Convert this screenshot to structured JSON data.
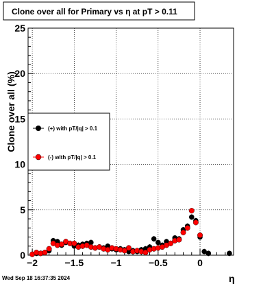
{
  "chart_data": {
    "type": "scatter",
    "title": "Clone  over all for Primary vs   η at pT > 0.11",
    "xlabel": "η",
    "ylabel": "Clone  over all (%)",
    "xlim": [
      -2.05,
      0.4
    ],
    "ylim": [
      0,
      25
    ],
    "grid": true,
    "legend_position": "left-middle",
    "x_ticks": [
      {
        "value": -2,
        "label": "−2"
      },
      {
        "value": -1.5,
        "label": "−1.5"
      },
      {
        "value": -1,
        "label": "−1"
      },
      {
        "value": -0.5,
        "label": "−0.5"
      },
      {
        "value": 0,
        "label": "0"
      }
    ],
    "y_ticks": [
      {
        "value": 0,
        "label": "0"
      },
      {
        "value": 5,
        "label": "5"
      },
      {
        "value": 10,
        "label": "10"
      },
      {
        "value": 15,
        "label": "15"
      },
      {
        "value": 20,
        "label": "20"
      },
      {
        "value": 25,
        "label": "25"
      }
    ],
    "series": [
      {
        "name": "(+) with pT/|q| > 0.1",
        "color": "#000000",
        "marker": "circle",
        "x": [
          -2.0,
          -1.95,
          -1.9,
          -1.85,
          -1.8,
          -1.75,
          -1.7,
          -1.65,
          -1.6,
          -1.55,
          -1.5,
          -1.45,
          -1.4,
          -1.35,
          -1.3,
          -1.25,
          -1.2,
          -1.15,
          -1.1,
          -1.05,
          -1.0,
          -0.95,
          -0.9,
          -0.85,
          -0.8,
          -0.75,
          -0.7,
          -0.65,
          -0.6,
          -0.55,
          -0.5,
          -0.45,
          -0.4,
          -0.35,
          -0.3,
          -0.25,
          -0.2,
          -0.15,
          -0.1,
          -0.05,
          0.0,
          0.05,
          0.1,
          0.35
        ],
        "y": [
          0.1,
          0.2,
          0.2,
          0.3,
          0.5,
          1.6,
          1.5,
          1.1,
          1.4,
          1.3,
          1.0,
          1.1,
          1.2,
          1.3,
          1.4,
          0.8,
          0.9,
          0.8,
          1.0,
          0.7,
          0.6,
          0.7,
          0.6,
          0.4,
          0.5,
          0.4,
          0.6,
          0.7,
          0.9,
          1.8,
          1.4,
          1.1,
          1.5,
          1.3,
          1.9,
          1.8,
          2.8,
          3.2,
          4.2,
          3.8,
          2.0,
          0.4,
          0.2,
          0.2
        ]
      },
      {
        "name": "(-) with pT/|q| > 0.1",
        "color": "#ff0000",
        "marker": "circle",
        "x": [
          -2.0,
          -1.95,
          -1.9,
          -1.85,
          -1.8,
          -1.75,
          -1.7,
          -1.65,
          -1.6,
          -1.55,
          -1.5,
          -1.45,
          -1.4,
          -1.35,
          -1.3,
          -1.25,
          -1.2,
          -1.15,
          -1.1,
          -1.05,
          -1.0,
          -0.95,
          -0.9,
          -0.85,
          -0.8,
          -0.75,
          -0.7,
          -0.65,
          -0.6,
          -0.55,
          -0.5,
          -0.45,
          -0.4,
          -0.35,
          -0.3,
          -0.25,
          -0.2,
          -0.15,
          -0.1,
          -0.05,
          0.0
        ],
        "y": [
          0.1,
          0.3,
          0.2,
          0.3,
          0.7,
          1.3,
          1.1,
          1.2,
          1.5,
          1.3,
          1.3,
          0.9,
          1.0,
          1.1,
          0.9,
          0.8,
          0.9,
          0.7,
          0.6,
          0.8,
          0.7,
          0.6,
          0.5,
          0.8,
          0.4,
          0.5,
          0.4,
          0.3,
          0.6,
          0.7,
          0.8,
          0.9,
          1.1,
          1.3,
          1.6,
          1.7,
          2.5,
          3.0,
          4.9,
          3.6,
          2.2
        ]
      }
    ]
  },
  "footer": {
    "timestamp": "Wed Sep 18 16:37:35 2024"
  }
}
